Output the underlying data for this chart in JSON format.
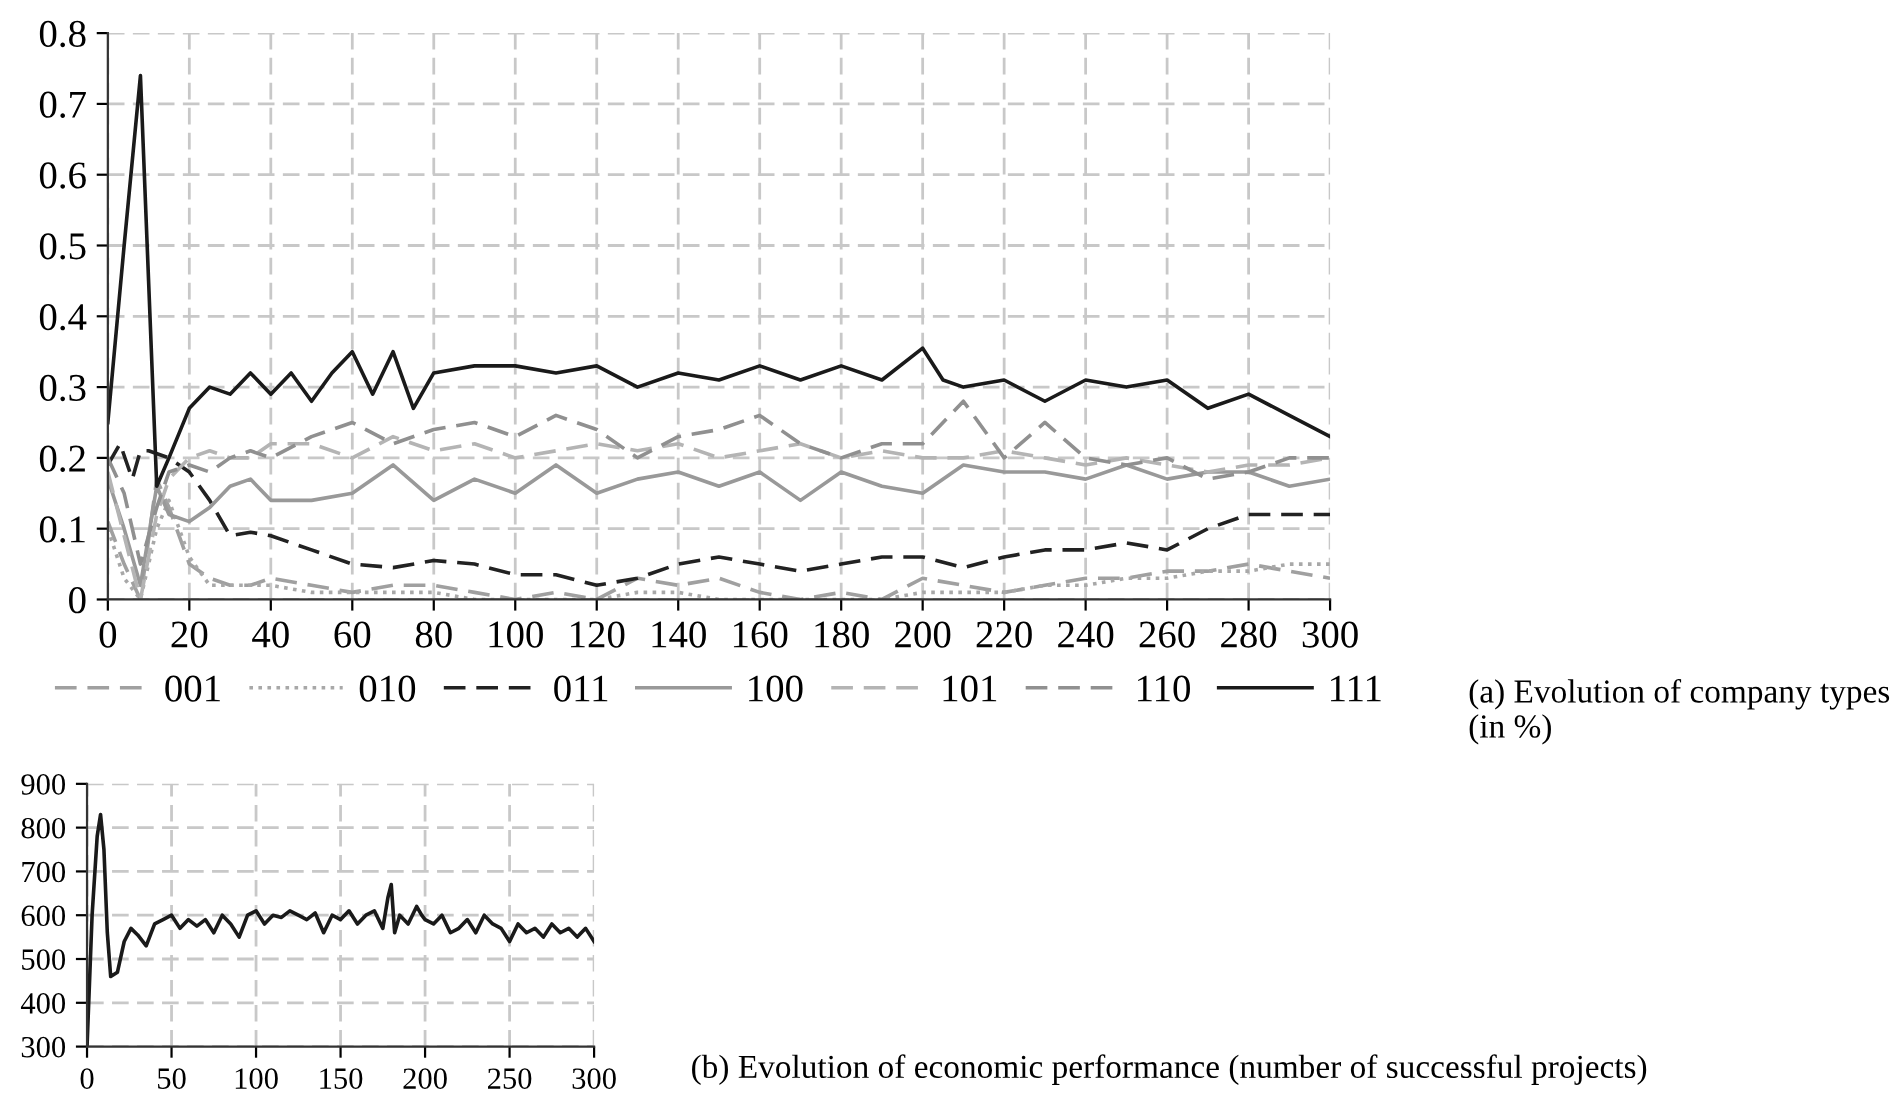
{
  "chart_data": [
    {
      "type": "line",
      "x": [
        0,
        4,
        8,
        12,
        15,
        20,
        25,
        30,
        35,
        40,
        50,
        60,
        70,
        80,
        90,
        100,
        110,
        120,
        130,
        140,
        150,
        160,
        170,
        180,
        190,
        200,
        210,
        220,
        230,
        240,
        250,
        260,
        270,
        280,
        290,
        300
      ],
      "xlim": [
        0,
        300
      ],
      "xticks": [
        0,
        20,
        40,
        60,
        80,
        100,
        120,
        140,
        160,
        180,
        200,
        220,
        240,
        260,
        280,
        300
      ],
      "ylim": [
        0,
        0.8
      ],
      "yticks": [
        0,
        0.1,
        0.2,
        0.3,
        0.4,
        0.5,
        0.6,
        0.7,
        0.8
      ],
      "grid": true,
      "legend": "bottom",
      "annotations": [
        "(a) Evolution of company types (in %)"
      ],
      "series": [
        {
          "name": "001",
          "color": "#a0a0a0",
          "line_style": "dashed",
          "values": [
            0.11,
            0.05,
            0.0,
            0.17,
            0.13,
            0.05,
            0.03,
            0.02,
            0.02,
            0.03,
            0.02,
            0.01,
            0.02,
            0.02,
            0.01,
            0.0,
            0.01,
            0.0,
            0.03,
            0.02,
            0.03,
            0.01,
            0.0,
            0.01,
            0.0,
            0.03,
            0.02,
            0.01,
            0.02,
            0.03,
            0.03,
            0.04,
            0.04,
            0.05,
            0.04,
            0.03
          ]
        },
        {
          "name": "010",
          "color": "#a8a8a8",
          "line_style": "dotted",
          "values": [
            0.1,
            0.03,
            0.0,
            0.1,
            0.14,
            0.06,
            0.02,
            0.02,
            0.02,
            0.02,
            0.01,
            0.01,
            0.01,
            0.01,
            0.0,
            0.0,
            0.0,
            0.0,
            0.01,
            0.01,
            0.0,
            0.0,
            0.0,
            0.0,
            0.0,
            0.01,
            0.01,
            0.01,
            0.02,
            0.02,
            0.03,
            0.03,
            0.04,
            0.04,
            0.05,
            0.05
          ]
        },
        {
          "name": "011",
          "color": "#222222",
          "line_style": "dashed",
          "x": [
            0,
            3,
            6,
            8,
            10,
            15,
            20,
            25,
            30,
            35,
            40,
            50,
            60,
            70,
            80,
            90,
            100,
            110,
            120,
            130,
            140,
            150,
            160,
            170,
            180,
            190,
            200,
            210,
            220,
            230,
            240,
            250,
            260,
            270,
            280,
            290,
            300
          ],
          "values": [
            0.19,
            0.22,
            0.17,
            0.21,
            0.21,
            0.2,
            0.18,
            0.14,
            0.09,
            0.095,
            0.09,
            0.07,
            0.05,
            0.045,
            0.055,
            0.05,
            0.035,
            0.035,
            0.02,
            0.03,
            0.05,
            0.06,
            0.05,
            0.04,
            0.05,
            0.06,
            0.06,
            0.045,
            0.06,
            0.07,
            0.07,
            0.08,
            0.07,
            0.1,
            0.12,
            0.12,
            0.12
          ]
        },
        {
          "name": "100",
          "color": "#999999",
          "line_style": "solid",
          "values": [
            0.17,
            0.1,
            0.02,
            0.16,
            0.12,
            0.11,
            0.13,
            0.16,
            0.17,
            0.14,
            0.14,
            0.15,
            0.19,
            0.14,
            0.17,
            0.15,
            0.19,
            0.15,
            0.17,
            0.18,
            0.16,
            0.18,
            0.14,
            0.18,
            0.16,
            0.15,
            0.19,
            0.18,
            0.18,
            0.17,
            0.19,
            0.17,
            0.18,
            0.18,
            0.16,
            0.17
          ]
        },
        {
          "name": "101",
          "color": "#b4b4b4",
          "line_style": "dashed",
          "values": [
            0.18,
            0.09,
            0.0,
            0.12,
            0.17,
            0.2,
            0.21,
            0.2,
            0.2,
            0.22,
            0.22,
            0.2,
            0.23,
            0.21,
            0.22,
            0.2,
            0.21,
            0.22,
            0.21,
            0.22,
            0.2,
            0.21,
            0.22,
            0.2,
            0.21,
            0.2,
            0.2,
            0.21,
            0.2,
            0.19,
            0.2,
            0.19,
            0.18,
            0.19,
            0.19,
            0.2
          ]
        },
        {
          "name": "110",
          "color": "#909090",
          "line_style": "dashed",
          "values": [
            0.2,
            0.15,
            0.05,
            0.13,
            0.18,
            0.19,
            0.18,
            0.2,
            0.21,
            0.2,
            0.23,
            0.25,
            0.22,
            0.24,
            0.25,
            0.23,
            0.26,
            0.24,
            0.2,
            0.23,
            0.24,
            0.26,
            0.22,
            0.2,
            0.22,
            0.22,
            0.28,
            0.2,
            0.25,
            0.2,
            0.19,
            0.2,
            0.17,
            0.18,
            0.2,
            0.2
          ]
        },
        {
          "name": "111",
          "color": "#1a1a1a",
          "line_style": "solid",
          "x": [
            0,
            4,
            8,
            10,
            12,
            15,
            20,
            25,
            30,
            35,
            40,
            45,
            50,
            55,
            60,
            65,
            70,
            75,
            80,
            90,
            100,
            110,
            120,
            130,
            140,
            150,
            160,
            170,
            180,
            190,
            200,
            205,
            210,
            220,
            230,
            240,
            250,
            260,
            270,
            280,
            290,
            300
          ],
          "values": [
            0.25,
            0.5,
            0.74,
            0.45,
            0.16,
            0.2,
            0.27,
            0.3,
            0.29,
            0.32,
            0.29,
            0.32,
            0.28,
            0.32,
            0.35,
            0.29,
            0.35,
            0.27,
            0.32,
            0.33,
            0.33,
            0.32,
            0.33,
            0.3,
            0.32,
            0.31,
            0.33,
            0.31,
            0.33,
            0.31,
            0.355,
            0.31,
            0.3,
            0.31,
            0.28,
            0.31,
            0.3,
            0.31,
            0.27,
            0.29,
            0.26,
            0.23
          ]
        }
      ]
    },
    {
      "type": "line",
      "xlim": [
        0,
        300
      ],
      "xticks": [
        0,
        50,
        100,
        150,
        200,
        250,
        300
      ],
      "ylim": [
        300,
        900
      ],
      "yticks": [
        300,
        400,
        500,
        600,
        700,
        800,
        900
      ],
      "grid": true,
      "annotations": [
        "(b) Evolution of economic performance (number of successful projects)"
      ],
      "series": [
        {
          "color": "#1a1a1a",
          "line_style": "solid",
          "x": [
            0,
            3,
            6,
            8,
            10,
            12,
            14,
            18,
            22,
            26,
            30,
            35,
            40,
            45,
            50,
            55,
            60,
            65,
            70,
            75,
            80,
            85,
            90,
            95,
            100,
            105,
            110,
            115,
            120,
            125,
            130,
            135,
            140,
            145,
            150,
            155,
            160,
            165,
            170,
            175,
            178,
            180,
            182,
            185,
            190,
            195,
            198,
            200,
            205,
            210,
            215,
            220,
            225,
            230,
            235,
            240,
            245,
            250,
            255,
            260,
            265,
            270,
            275,
            280,
            285,
            290,
            295,
            300
          ],
          "values": [
            300,
            600,
            780,
            830,
            750,
            560,
            460,
            470,
            540,
            570,
            555,
            530,
            580,
            590,
            600,
            570,
            590,
            575,
            590,
            560,
            600,
            580,
            550,
            600,
            610,
            580,
            600,
            595,
            610,
            600,
            590,
            605,
            560,
            600,
            590,
            610,
            580,
            600,
            610,
            570,
            640,
            670,
            560,
            600,
            580,
            620,
            600,
            590,
            580,
            600,
            560,
            570,
            590,
            560,
            600,
            580,
            570,
            540,
            580,
            560,
            570,
            550,
            580,
            560,
            570,
            550,
            570,
            540
          ]
        }
      ]
    }
  ]
}
